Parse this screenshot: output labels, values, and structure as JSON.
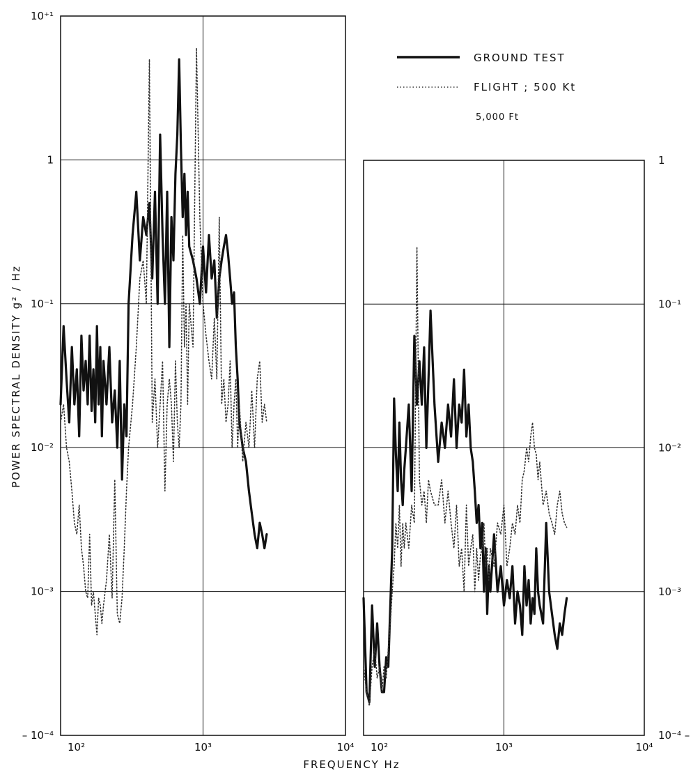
{
  "figure": {
    "xlabel": "FREQUENCY  Hz",
    "ylabel": "POWER  SPECTRAL  DENSITY    g² / Hz",
    "legend": {
      "ground": "GROUND  TEST",
      "flight": "FLIGHT ;  500  Kt",
      "flight_sub": "5,000  Ft"
    }
  },
  "chart_data": [
    {
      "type": "line",
      "panel": "left",
      "xscale": "log",
      "yscale": "log",
      "xlim": [
        100,
        10000
      ],
      "ylim": [
        0.0001,
        10
      ],
      "grid": true,
      "legend_position": "top-right",
      "x_ticks": [
        {
          "value": 100,
          "label": "10²"
        },
        {
          "value": 1000,
          "label": "10³"
        },
        {
          "value": 10000,
          "label": "10⁴"
        }
      ],
      "y_ticks": [
        {
          "value": 0.0001,
          "label": "– 10⁻⁴"
        },
        {
          "value": 0.001,
          "label": "10⁻³"
        },
        {
          "value": 0.01,
          "label": "10⁻²"
        },
        {
          "value": 0.1,
          "label": "10⁻¹"
        },
        {
          "value": 1,
          "label": "1"
        },
        {
          "value": 10,
          "label": "10⁺¹"
        }
      ],
      "series": [
        {
          "name": "GROUND  TEST",
          "style": "solid",
          "x": [
            100,
            105,
            110,
            115,
            120,
            125,
            130,
            135,
            140,
            145,
            150,
            155,
            160,
            165,
            170,
            175,
            180,
            185,
            190,
            195,
            200,
            210,
            220,
            230,
            240,
            250,
            260,
            270,
            280,
            290,
            300,
            320,
            340,
            360,
            380,
            400,
            420,
            440,
            460,
            480,
            500,
            520,
            540,
            560,
            580,
            600,
            620,
            640,
            660,
            680,
            700,
            720,
            740,
            760,
            780,
            800,
            850,
            900,
            950,
            1000,
            1050,
            1100,
            1150,
            1200,
            1250,
            1300,
            1350,
            1400,
            1450,
            1500,
            1550,
            1600,
            1650,
            1700,
            1750,
            1800,
            1900,
            2000,
            2100,
            2200,
            2300,
            2400,
            2500,
            2600,
            2700,
            2800
          ],
          "y": [
            0.02,
            0.07,
            0.03,
            0.015,
            0.05,
            0.02,
            0.035,
            0.012,
            0.06,
            0.025,
            0.04,
            0.02,
            0.06,
            0.018,
            0.035,
            0.015,
            0.07,
            0.02,
            0.05,
            0.012,
            0.04,
            0.02,
            0.05,
            0.015,
            0.025,
            0.01,
            0.04,
            0.006,
            0.02,
            0.012,
            0.1,
            0.3,
            0.6,
            0.2,
            0.4,
            0.3,
            0.5,
            0.15,
            0.6,
            0.1,
            1.5,
            0.3,
            0.1,
            0.6,
            0.05,
            0.4,
            0.2,
            0.8,
            1.5,
            5,
            1.2,
            0.4,
            0.8,
            0.3,
            0.6,
            0.25,
            0.2,
            0.15,
            0.1,
            0.25,
            0.12,
            0.3,
            0.15,
            0.2,
            0.08,
            0.15,
            0.2,
            0.25,
            0.3,
            0.22,
            0.15,
            0.1,
            0.12,
            0.05,
            0.03,
            0.015,
            0.01,
            0.008,
            0.005,
            0.0035,
            0.0025,
            0.002,
            0.003,
            0.0025,
            0.002,
            0.0025
          ]
        },
        {
          "name": "FLIGHT ;  500  Kt",
          "style": "dotted",
          "x": [
            100,
            105,
            110,
            115,
            120,
            125,
            130,
            135,
            140,
            145,
            150,
            155,
            160,
            165,
            170,
            175,
            180,
            185,
            190,
            195,
            200,
            210,
            220,
            230,
            240,
            250,
            260,
            270,
            280,
            290,
            300,
            320,
            340,
            360,
            380,
            400,
            420,
            440,
            460,
            480,
            500,
            520,
            540,
            560,
            580,
            600,
            620,
            640,
            660,
            680,
            700,
            720,
            740,
            760,
            780,
            800,
            850,
            900,
            950,
            1000,
            1050,
            1100,
            1150,
            1200,
            1250,
            1300,
            1350,
            1400,
            1450,
            1500,
            1550,
            1600,
            1650,
            1700,
            1750,
            1800,
            1900,
            2000,
            2100,
            2200,
            2300,
            2400,
            2500,
            2600,
            2700,
            2800
          ],
          "y": [
            0.015,
            0.02,
            0.01,
            0.008,
            0.005,
            0.003,
            0.0025,
            0.004,
            0.002,
            0.0015,
            0.001,
            0.0009,
            0.0025,
            0.0008,
            0.001,
            0.0007,
            0.0005,
            0.0009,
            0.0008,
            0.0006,
            0.0008,
            0.0012,
            0.0025,
            0.0009,
            0.006,
            0.0007,
            0.0006,
            0.0009,
            0.002,
            0.005,
            0.01,
            0.02,
            0.05,
            0.15,
            0.2,
            0.1,
            5,
            0.015,
            0.03,
            0.01,
            0.02,
            0.04,
            0.005,
            0.02,
            0.03,
            0.02,
            0.008,
            0.04,
            0.015,
            0.01,
            0.02,
            0.3,
            0.05,
            0.1,
            0.02,
            0.1,
            0.05,
            6,
            0.4,
            0.1,
            0.06,
            0.04,
            0.03,
            0.08,
            0.03,
            0.4,
            0.02,
            0.03,
            0.015,
            0.02,
            0.04,
            0.01,
            0.02,
            0.03,
            0.01,
            0.02,
            0.008,
            0.015,
            0.01,
            0.025,
            0.01,
            0.03,
            0.04,
            0.015,
            0.02,
            0.015
          ]
        }
      ]
    },
    {
      "type": "line",
      "panel": "right",
      "xscale": "log",
      "yscale": "log",
      "xlim": [
        100,
        10000
      ],
      "ylim": [
        0.0001,
        1
      ],
      "grid": true,
      "x_ticks": [
        {
          "value": 100,
          "label": "10²"
        },
        {
          "value": 1000,
          "label": "10³"
        },
        {
          "value": 10000,
          "label": "10⁴"
        }
      ],
      "y_ticks": [
        {
          "value": 0.0001,
          "label": "10⁻⁴ –"
        },
        {
          "value": 0.001,
          "label": "10⁻³"
        },
        {
          "value": 0.01,
          "label": "10⁻²"
        },
        {
          "value": 0.1,
          "label": "10⁻¹"
        },
        {
          "value": 1,
          "label": "1"
        }
      ],
      "series": [
        {
          "name": "GROUND  TEST",
          "style": "solid",
          "x": [
            100,
            105,
            110,
            115,
            120,
            125,
            130,
            135,
            140,
            145,
            150,
            155,
            160,
            165,
            170,
            175,
            180,
            185,
            190,
            195,
            200,
            210,
            220,
            230,
            240,
            250,
            260,
            270,
            280,
            290,
            300,
            320,
            340,
            360,
            380,
            400,
            420,
            440,
            460,
            480,
            500,
            520,
            540,
            560,
            580,
            600,
            620,
            640,
            660,
            680,
            700,
            720,
            740,
            760,
            780,
            800,
            850,
            900,
            950,
            1000,
            1050,
            1100,
            1150,
            1200,
            1250,
            1300,
            1350,
            1400,
            1450,
            1500,
            1550,
            1600,
            1650,
            1700,
            1750,
            1800,
            1900,
            2000,
            2100,
            2200,
            2300,
            2400,
            2500,
            2600,
            2700,
            2800
          ],
          "y": [
            0.0009,
            0.0002,
            0.00017,
            0.0008,
            0.0003,
            0.0006,
            0.0003,
            0.0002,
            0.0002,
            0.00035,
            0.0003,
            0.0008,
            0.002,
            0.022,
            0.009,
            0.005,
            0.015,
            0.006,
            0.004,
            0.007,
            0.01,
            0.02,
            0.005,
            0.06,
            0.02,
            0.04,
            0.02,
            0.05,
            0.01,
            0.03,
            0.09,
            0.02,
            0.008,
            0.015,
            0.01,
            0.02,
            0.012,
            0.03,
            0.01,
            0.02,
            0.015,
            0.035,
            0.012,
            0.02,
            0.01,
            0.008,
            0.005,
            0.003,
            0.004,
            0.002,
            0.003,
            0.001,
            0.002,
            0.0007,
            0.0015,
            0.001,
            0.0025,
            0.001,
            0.0015,
            0.0008,
            0.0012,
            0.0009,
            0.0015,
            0.0006,
            0.001,
            0.0008,
            0.0005,
            0.0015,
            0.0008,
            0.0012,
            0.0006,
            0.0009,
            0.0007,
            0.002,
            0.001,
            0.0008,
            0.0006,
            0.003,
            0.001,
            0.0007,
            0.0005,
            0.0004,
            0.0006,
            0.0005,
            0.0007,
            0.0009
          ]
        },
        {
          "name": "FLIGHT ;  500  Kt",
          "style": "dotted",
          "x": [
            100,
            105,
            110,
            115,
            120,
            125,
            130,
            135,
            140,
            145,
            150,
            155,
            160,
            165,
            170,
            175,
            180,
            185,
            190,
            195,
            200,
            210,
            220,
            230,
            240,
            250,
            260,
            270,
            280,
            290,
            300,
            320,
            340,
            360,
            380,
            400,
            420,
            440,
            460,
            480,
            500,
            520,
            540,
            560,
            580,
            600,
            620,
            640,
            660,
            680,
            700,
            720,
            740,
            760,
            780,
            800,
            850,
            900,
            950,
            1000,
            1050,
            1100,
            1150,
            1200,
            1250,
            1300,
            1350,
            1400,
            1450,
            1500,
            1550,
            1600,
            1650,
            1700,
            1750,
            1800,
            1900,
            2000,
            2100,
            2200,
            2300,
            2400,
            2500,
            2600,
            2700,
            2800
          ],
          "y": [
            0.0003,
            0.0002,
            0.00016,
            0.0003,
            0.0004,
            0.00025,
            0.0003,
            0.0002,
            0.0003,
            0.00025,
            0.0004,
            0.0006,
            0.001,
            0.0015,
            0.003,
            0.002,
            0.004,
            0.0015,
            0.003,
            0.002,
            0.003,
            0.002,
            0.004,
            0.003,
            0.25,
            0.006,
            0.004,
            0.005,
            0.003,
            0.006,
            0.005,
            0.004,
            0.004,
            0.006,
            0.003,
            0.005,
            0.003,
            0.002,
            0.004,
            0.0015,
            0.002,
            0.001,
            0.004,
            0.0015,
            0.002,
            0.0025,
            0.001,
            0.002,
            0.0012,
            0.0018,
            0.002,
            0.003,
            0.0015,
            0.002,
            0.0012,
            0.002,
            0.0015,
            0.003,
            0.0025,
            0.004,
            0.0015,
            0.002,
            0.003,
            0.0025,
            0.004,
            0.003,
            0.006,
            0.007,
            0.01,
            0.008,
            0.012,
            0.015,
            0.01,
            0.009,
            0.006,
            0.008,
            0.004,
            0.005,
            0.0035,
            0.003,
            0.0025,
            0.004,
            0.005,
            0.0035,
            0.003,
            0.0028
          ]
        }
      ]
    }
  ]
}
